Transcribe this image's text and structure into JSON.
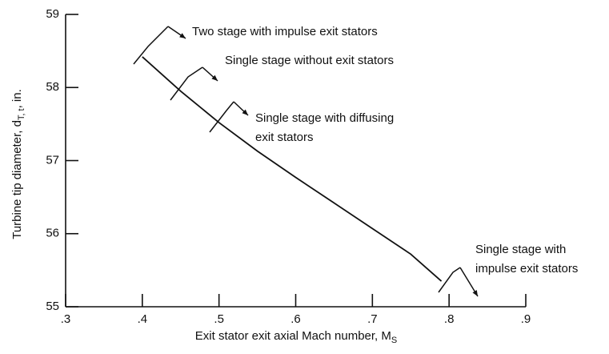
{
  "chart_data": {
    "type": "line",
    "xlabel": {
      "text": "Exit stator exit axial Mach number,  M",
      "sub": "S"
    },
    "ylabel": {
      "text": "Turbine tip diameter, d",
      "sub": "T, t",
      "after": ",  in."
    },
    "x": [
      0.4,
      0.45,
      0.5,
      0.55,
      0.6,
      0.65,
      0.7,
      0.75,
      0.79
    ],
    "series": [
      {
        "color": "#111111",
        "values": [
          58.42,
          57.95,
          57.52,
          57.13,
          56.77,
          56.42,
          56.07,
          55.72,
          55.35
        ]
      }
    ],
    "xlim": [
      0.3,
      0.9
    ],
    "ylim": [
      55,
      59
    ],
    "xticks": [
      {
        "value": 0.3,
        "label": ".3"
      },
      {
        "value": 0.4,
        "label": ".4"
      },
      {
        "value": 0.5,
        "label": ".5"
      },
      {
        "value": 0.6,
        "label": ".6"
      },
      {
        "value": 0.7,
        "label": ".7"
      },
      {
        "value": 0.8,
        "label": ".8"
      },
      {
        "value": 0.9,
        "label": ".9"
      }
    ],
    "yticks": [
      55,
      56,
      57,
      58,
      59
    ],
    "annotations": [
      {
        "lines": [
          "Two stage with impulse exit stators"
        ]
      },
      {
        "lines": [
          "Single stage without exit stators"
        ]
      },
      {
        "lines": [
          "Single stage with diffusing",
          "exit stators"
        ]
      },
      {
        "lines": [
          "Single stage with",
          "impulse exit stators"
        ]
      }
    ]
  }
}
